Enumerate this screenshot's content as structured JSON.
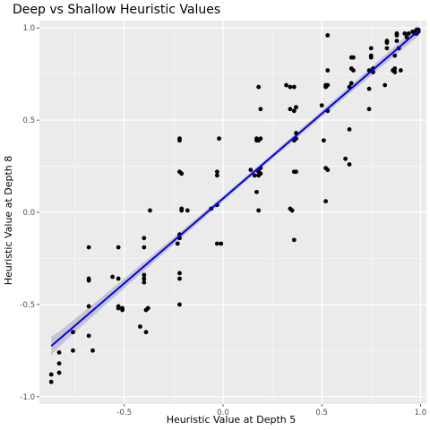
{
  "chart_data": {
    "type": "scatter",
    "title": "Deep vs Shallow Heuristic Values",
    "xlabel": "Heuristic Value at Depth 5",
    "ylabel": "Heuristic Value at Depth 8",
    "xlim": [
      -0.93,
      1.03
    ],
    "ylim": [
      -1.04,
      1.04
    ],
    "x_ticks": [
      -0.5,
      0.0,
      0.5,
      1.0
    ],
    "x_tick_labels": [
      "-0.5",
      "0.0",
      "0.5",
      "1.0"
    ],
    "y_ticks": [
      -1.0,
      -0.5,
      0.0,
      0.5,
      1.0
    ],
    "y_tick_labels": [
      "-1.0",
      "-0.5",
      "0.0",
      "0.5",
      "1.0"
    ],
    "grid": true,
    "background": "#ebebeb",
    "point_color": "#000000",
    "trend_color": "#0000ff",
    "band_color": "#b8b8c8",
    "trend": {
      "intercept": 0.075,
      "slope": 0.92,
      "x_range": [
        -0.87,
        0.99
      ],
      "se_start": 0.05,
      "se_mid": 0.013,
      "se_end": 0.03
    },
    "points": [
      [
        -0.87,
        -0.88
      ],
      [
        -0.87,
        -0.92
      ],
      [
        -0.83,
        -0.87
      ],
      [
        -0.83,
        -0.82
      ],
      [
        -0.83,
        -0.76
      ],
      [
        -0.76,
        -0.65
      ],
      [
        -0.76,
        -0.75
      ],
      [
        -0.68,
        -0.19
      ],
      [
        -0.68,
        -0.36
      ],
      [
        -0.68,
        -0.37
      ],
      [
        -0.68,
        -0.51
      ],
      [
        -0.68,
        -0.67
      ],
      [
        -0.66,
        -0.75
      ],
      [
        -0.56,
        -0.35
      ],
      [
        -0.53,
        -0.19
      ],
      [
        -0.53,
        -0.36
      ],
      [
        -0.53,
        -0.51
      ],
      [
        -0.53,
        -0.52
      ],
      [
        -0.51,
        -0.53
      ],
      [
        -0.51,
        -0.52
      ],
      [
        -0.42,
        -0.62
      ],
      [
        -0.4,
        -0.14
      ],
      [
        -0.4,
        -0.19
      ],
      [
        -0.4,
        -0.34
      ],
      [
        -0.4,
        -0.36
      ],
      [
        -0.4,
        -0.38
      ],
      [
        -0.39,
        -0.53
      ],
      [
        -0.39,
        -0.65
      ],
      [
        -0.38,
        -0.52
      ],
      [
        -0.37,
        0.01
      ],
      [
        -0.22,
        0.4
      ],
      [
        -0.22,
        0.39
      ],
      [
        -0.22,
        0.22
      ],
      [
        -0.21,
        0.21
      ],
      [
        -0.21,
        0.02
      ],
      [
        -0.21,
        0.01
      ],
      [
        -0.22,
        -0.12
      ],
      [
        -0.22,
        -0.14
      ],
      [
        -0.23,
        -0.17
      ],
      [
        -0.22,
        -0.33
      ],
      [
        -0.22,
        -0.36
      ],
      [
        -0.22,
        -0.5
      ],
      [
        -0.18,
        0.01
      ],
      [
        -0.06,
        0.02
      ],
      [
        -0.03,
        0.22
      ],
      [
        -0.03,
        0.2
      ],
      [
        -0.02,
        0.4
      ],
      [
        -0.03,
        0.04
      ],
      [
        -0.03,
        -0.17
      ],
      [
        -0.01,
        -0.17
      ],
      [
        0.14,
        0.23
      ],
      [
        0.16,
        0.2
      ],
      [
        0.18,
        0.68
      ],
      [
        0.19,
        0.56
      ],
      [
        0.17,
        0.39
      ],
      [
        0.17,
        0.4
      ],
      [
        0.18,
        0.39
      ],
      [
        0.19,
        0.4
      ],
      [
        0.18,
        0.22
      ],
      [
        0.19,
        0.24
      ],
      [
        0.19,
        0.21
      ],
      [
        0.18,
        0.2
      ],
      [
        0.17,
        0.11
      ],
      [
        0.18,
        0.01
      ],
      [
        0.32,
        0.69
      ],
      [
        0.34,
        0.68
      ],
      [
        0.34,
        0.56
      ],
      [
        0.36,
        0.55
      ],
      [
        0.36,
        0.68
      ],
      [
        0.37,
        0.57
      ],
      [
        0.37,
        0.4
      ],
      [
        0.36,
        0.39
      ],
      [
        0.37,
        0.43
      ],
      [
        0.34,
        0.02
      ],
      [
        0.35,
        0.01
      ],
      [
        0.36,
        0.22
      ],
      [
        0.37,
        0.22
      ],
      [
        0.36,
        -0.15
      ],
      [
        0.5,
        0.58
      ],
      [
        0.52,
        0.68
      ],
      [
        0.52,
        0.69
      ],
      [
        0.53,
        0.69
      ],
      [
        0.53,
        0.77
      ],
      [
        0.53,
        0.55
      ],
      [
        0.53,
        0.96
      ],
      [
        0.51,
        0.39
      ],
      [
        0.52,
        0.24
      ],
      [
        0.53,
        0.23
      ],
      [
        0.52,
        0.06
      ],
      [
        0.62,
        0.29
      ],
      [
        0.64,
        0.45
      ],
      [
        0.64,
        0.26
      ],
      [
        0.64,
        0.68
      ],
      [
        0.65,
        0.7
      ],
      [
        0.65,
        0.78
      ],
      [
        0.66,
        0.77
      ],
      [
        0.65,
        0.84
      ],
      [
        0.66,
        0.84
      ],
      [
        0.74,
        0.56
      ],
      [
        0.74,
        0.67
      ],
      [
        0.74,
        0.77
      ],
      [
        0.75,
        0.84
      ],
      [
        0.75,
        0.85
      ],
      [
        0.75,
        0.89
      ],
      [
        0.76,
        0.78
      ],
      [
        0.76,
        0.76
      ],
      [
        0.82,
        0.69
      ],
      [
        0.83,
        0.93
      ],
      [
        0.83,
        0.92
      ],
      [
        0.83,
        0.89
      ],
      [
        0.86,
        0.77
      ],
      [
        0.87,
        0.76
      ],
      [
        0.87,
        0.78
      ],
      [
        0.87,
        0.85
      ],
      [
        0.88,
        0.93
      ],
      [
        0.88,
        0.96
      ],
      [
        0.88,
        0.97
      ],
      [
        0.89,
        0.89
      ],
      [
        0.9,
        0.77
      ],
      [
        0.92,
        0.97
      ],
      [
        0.93,
        0.95
      ],
      [
        0.94,
        0.97
      ],
      [
        0.96,
        0.98
      ],
      [
        0.97,
        0.97
      ],
      [
        0.98,
        0.98
      ],
      [
        0.98,
        0.99
      ],
      [
        0.99,
        0.99
      ],
      [
        0.99,
        0.98
      ],
      [
        0.98,
        0.97
      ]
    ]
  }
}
